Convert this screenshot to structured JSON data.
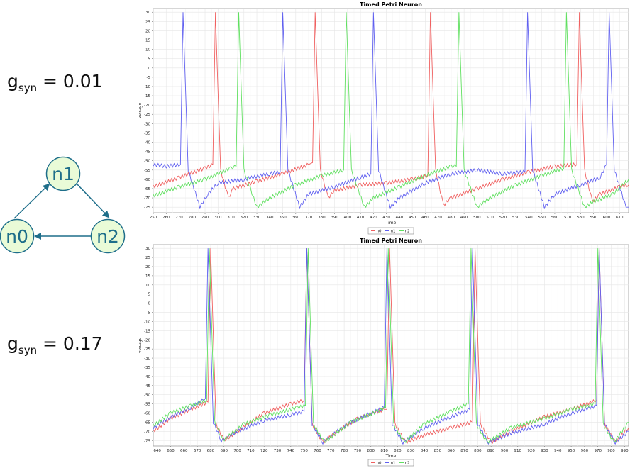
{
  "labels": {
    "top": {
      "g": "g",
      "sub": "syn",
      "rest": " = 0.01"
    },
    "bottom": {
      "g": "g",
      "sub": "syn",
      "rest": " = 0.17"
    }
  },
  "network": {
    "nodes": [
      {
        "id": "n1"
      },
      {
        "id": "n0"
      },
      {
        "id": "n2"
      }
    ],
    "edges": [
      [
        "n0",
        "n1"
      ],
      [
        "n1",
        "n2"
      ],
      [
        "n2",
        "n0"
      ]
    ],
    "node_fill": "#e9fbd7",
    "node_stroke": "#1e6e8a",
    "text_color": "#1e6e8a"
  },
  "chart_data": [
    {
      "type": "line",
      "title": "Timed Petri Neuron",
      "xlabel": "Time",
      "ylabel": "Voltage",
      "xlim": [
        250,
        617
      ],
      "ylim": [
        -78,
        32
      ],
      "xticks": [
        250,
        260,
        270,
        280,
        290,
        300,
        310,
        320,
        330,
        340,
        350,
        360,
        370,
        380,
        390,
        400,
        410,
        420,
        430,
        440,
        450,
        460,
        470,
        480,
        490,
        500,
        510,
        520,
        530,
        540,
        550,
        560,
        570,
        580,
        590,
        600,
        610
      ],
      "yticks": [
        30,
        25,
        20,
        15,
        10,
        5,
        0,
        -5,
        -10,
        -15,
        -20,
        -25,
        -30,
        -35,
        -40,
        -45,
        -50,
        -55,
        -60,
        -65,
        -70,
        -75
      ],
      "legend_position": "bottom-center",
      "series": [
        {
          "name": "n0",
          "color": "#f06060",
          "points": [
            [
              250,
              -64
            ],
            [
              270,
              -59
            ],
            [
              290,
              -54
            ],
            [
              296,
              -52
            ],
            [
              298,
              30
            ],
            [
              302,
              -55
            ],
            [
              308,
              -70
            ],
            [
              312,
              -65
            ],
            [
              330,
              -61
            ],
            [
              350,
              -57
            ],
            [
              370,
              -52
            ],
            [
              373,
              -51
            ],
            [
              375,
              30
            ],
            [
              379,
              -55
            ],
            [
              385,
              -70
            ],
            [
              390,
              -66
            ],
            [
              410,
              -63
            ],
            [
              430,
              -62
            ],
            [
              450,
              -60
            ],
            [
              462,
              -58
            ],
            [
              464,
              30
            ],
            [
              468,
              -55
            ],
            [
              474,
              -74
            ],
            [
              480,
              -70
            ],
            [
              500,
              -65
            ],
            [
              520,
              -60
            ],
            [
              540,
              -56
            ],
            [
              560,
              -53
            ],
            [
              577,
              -52
            ],
            [
              579,
              30
            ],
            [
              583,
              -55
            ],
            [
              589,
              -72
            ],
            [
              595,
              -68
            ],
            [
              610,
              -64
            ],
            [
              617,
              -63
            ]
          ]
        },
        {
          "name": "n1",
          "color": "#6060f0",
          "points": [
            [
              250,
              -52
            ],
            [
              260,
              -53
            ],
            [
              271,
              -52
            ],
            [
              273,
              30
            ],
            [
              277,
              -55
            ],
            [
              286,
              -75
            ],
            [
              292,
              -68
            ],
            [
              300,
              -62
            ],
            [
              320,
              -60
            ],
            [
              340,
              -57
            ],
            [
              348,
              -56
            ],
            [
              350,
              30
            ],
            [
              354,
              -55
            ],
            [
              363,
              -75
            ],
            [
              370,
              -68
            ],
            [
              390,
              -64
            ],
            [
              410,
              -59
            ],
            [
              418,
              -57
            ],
            [
              420,
              30
            ],
            [
              424,
              -55
            ],
            [
              433,
              -75
            ],
            [
              440,
              -70
            ],
            [
              460,
              -62
            ],
            [
              480,
              -57
            ],
            [
              500,
              -55
            ],
            [
              520,
              -57
            ],
            [
              537,
              -56
            ],
            [
              539,
              30
            ],
            [
              543,
              -55
            ],
            [
              552,
              -75
            ],
            [
              560,
              -68
            ],
            [
              580,
              -63
            ],
            [
              595,
              -59
            ],
            [
              600,
              -52
            ],
            [
              602,
              30
            ],
            [
              606,
              -55
            ],
            [
              615,
              -75
            ],
            [
              617,
              -75
            ]
          ]
        },
        {
          "name": "n2",
          "color": "#60e060",
          "points": [
            [
              250,
              -69
            ],
            [
              270,
              -64
            ],
            [
              290,
              -60
            ],
            [
              310,
              -54
            ],
            [
              314,
              -53
            ],
            [
              316,
              30
            ],
            [
              320,
              -55
            ],
            [
              330,
              -75
            ],
            [
              340,
              -70
            ],
            [
              360,
              -63
            ],
            [
              380,
              -58
            ],
            [
              397,
              -55
            ],
            [
              399,
              30
            ],
            [
              403,
              -55
            ],
            [
              413,
              -75
            ],
            [
              420,
              -70
            ],
            [
              440,
              -64
            ],
            [
              460,
              -58
            ],
            [
              480,
              -53
            ],
            [
              484,
              -53
            ],
            [
              486,
              30
            ],
            [
              490,
              -55
            ],
            [
              500,
              -75
            ],
            [
              510,
              -70
            ],
            [
              530,
              -63
            ],
            [
              550,
              -58
            ],
            [
              567,
              -54
            ],
            [
              569,
              30
            ],
            [
              573,
              -55
            ],
            [
              583,
              -75
            ],
            [
              590,
              -72
            ],
            [
              605,
              -68
            ],
            [
              617,
              -60
            ]
          ]
        }
      ]
    },
    {
      "type": "line",
      "title": "Timed Petri Neuron",
      "xlabel": "Time",
      "ylabel": "Voltage",
      "xlim": [
        637,
        993
      ],
      "ylim": [
        -78,
        32
      ],
      "xticks": [
        640,
        650,
        660,
        670,
        680,
        690,
        700,
        710,
        720,
        730,
        740,
        750,
        760,
        770,
        780,
        790,
        800,
        810,
        820,
        830,
        840,
        850,
        860,
        870,
        880,
        890,
        900,
        910,
        920,
        930,
        940,
        950,
        960,
        970,
        980,
        990
      ],
      "yticks": [
        30,
        25,
        20,
        15,
        10,
        5,
        0,
        -5,
        -10,
        -15,
        -20,
        -25,
        -30,
        -35,
        -40,
        -45,
        -50,
        -55,
        -60,
        -65,
        -70,
        -75
      ],
      "legend_position": "bottom-center",
      "series": [
        {
          "name": "n0",
          "color": "#f06060",
          "points": [
            [
              637,
              -70
            ],
            [
              650,
              -63
            ],
            [
              665,
              -58
            ],
            [
              678,
              -54
            ],
            [
              680,
              30
            ],
            [
              684,
              -66
            ],
            [
              690,
              -75
            ],
            [
              700,
              -70
            ],
            [
              720,
              -60
            ],
            [
              740,
              -55
            ],
            [
              750,
              -53
            ],
            [
              752,
              30
            ],
            [
              756,
              -66
            ],
            [
              764,
              -76
            ],
            [
              775,
              -70
            ],
            [
              790,
              -63
            ],
            [
              810,
              -58
            ],
            [
              812,
              -58
            ],
            [
              814,
              30
            ],
            [
              818,
              -66
            ],
            [
              826,
              -76
            ],
            [
              840,
              -72
            ],
            [
              860,
              -68
            ],
            [
              876,
              -65
            ],
            [
              878,
              30
            ],
            [
              882,
              -66
            ],
            [
              890,
              -76
            ],
            [
              905,
              -70
            ],
            [
              930,
              -62
            ],
            [
              950,
              -58
            ],
            [
              969,
              -53
            ],
            [
              971,
              30
            ],
            [
              975,
              -66
            ],
            [
              983,
              -76
            ],
            [
              993,
              -68
            ]
          ]
        },
        {
          "name": "n1",
          "color": "#6060f0",
          "points": [
            [
              637,
              -68
            ],
            [
              650,
              -62
            ],
            [
              665,
              -57
            ],
            [
              676,
              -52
            ],
            [
              678,
              30
            ],
            [
              682,
              -65
            ],
            [
              688,
              -75
            ],
            [
              700,
              -70
            ],
            [
              720,
              -64
            ],
            [
              740,
              -61
            ],
            [
              750,
              -59
            ],
            [
              752,
              30
            ],
            [
              756,
              -66
            ],
            [
              764,
              -76
            ],
            [
              780,
              -67
            ],
            [
              800,
              -60
            ],
            [
              810,
              -57
            ],
            [
              812,
              30
            ],
            [
              816,
              -66
            ],
            [
              824,
              -76
            ],
            [
              840,
              -68
            ],
            [
              860,
              -62
            ],
            [
              874,
              -58
            ],
            [
              876,
              30
            ],
            [
              880,
              -66
            ],
            [
              888,
              -76
            ],
            [
              905,
              -71
            ],
            [
              930,
              -66
            ],
            [
              950,
              -60
            ],
            [
              969,
              -56
            ],
            [
              971,
              30
            ],
            [
              975,
              -66
            ],
            [
              983,
              -76
            ],
            [
              993,
              -70
            ]
          ]
        },
        {
          "name": "n2",
          "color": "#60e060",
          "points": [
            [
              637,
              -67
            ],
            [
              650,
              -60
            ],
            [
              665,
              -56
            ],
            [
              677,
              -53
            ],
            [
              679,
              30
            ],
            [
              683,
              -65
            ],
            [
              689,
              -75
            ],
            [
              705,
              -66
            ],
            [
              725,
              -61
            ],
            [
              745,
              -57
            ],
            [
              751,
              -56
            ],
            [
              753,
              30
            ],
            [
              757,
              -66
            ],
            [
              765,
              -76
            ],
            [
              785,
              -65
            ],
            [
              805,
              -59
            ],
            [
              811,
              -57
            ],
            [
              813,
              30
            ],
            [
              817,
              -66
            ],
            [
              825,
              -76
            ],
            [
              840,
              -66
            ],
            [
              860,
              -59
            ],
            [
              873,
              -55
            ],
            [
              875,
              30
            ],
            [
              879,
              -66
            ],
            [
              887,
              -76
            ],
            [
              905,
              -68
            ],
            [
              930,
              -63
            ],
            [
              950,
              -58
            ],
            [
              968,
              -55
            ],
            [
              970,
              30
            ],
            [
              974,
              -66
            ],
            [
              982,
              -76
            ],
            [
              993,
              -65
            ]
          ]
        }
      ]
    }
  ]
}
